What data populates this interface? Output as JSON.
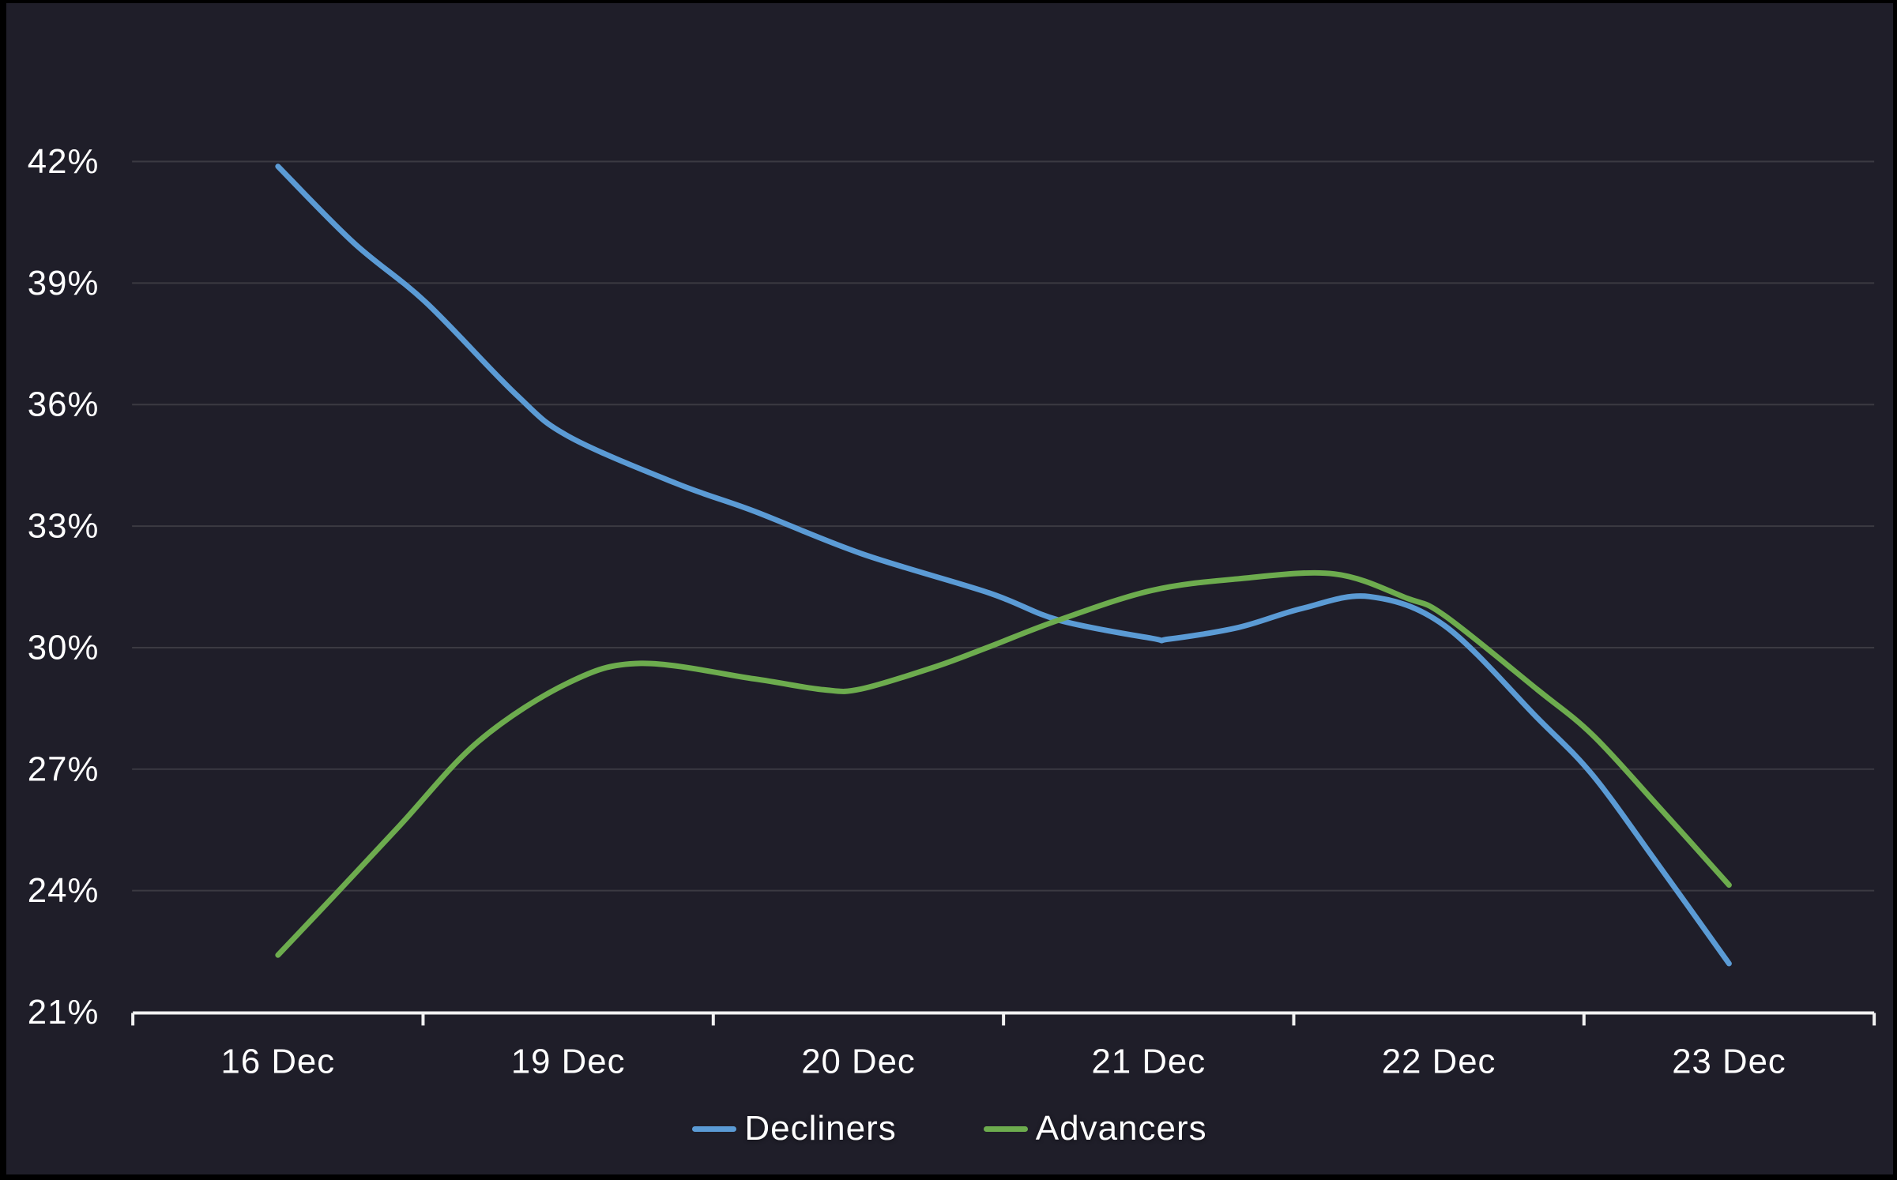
{
  "chart_data": {
    "type": "line",
    "title": "",
    "xlabel": "",
    "ylabel": "",
    "smooth": true,
    "grid": "horizontal",
    "legend_position": "bottom",
    "categories": [
      "16 Dec",
      "19 Dec",
      "20 Dec",
      "21 Dec",
      "22 Dec",
      "23 Dec"
    ],
    "y_axis": {
      "unit": "%",
      "min": 21,
      "max": 42,
      "step": 3,
      "tick_values": [
        42,
        39,
        36,
        33,
        30,
        27,
        24,
        21
      ],
      "tick_labels": [
        "42%",
        "39%",
        "36%",
        "33%",
        "30%",
        "27%",
        "24%",
        "21%"
      ]
    },
    "series": [
      {
        "name": "Decliners",
        "color": "#5B9BD5",
        "values": [
          41.9,
          35.2,
          32.3,
          30.2,
          30.5,
          22.2
        ],
        "curve_samples": [
          [
            0.0,
            41.88
          ],
          [
            0.26,
            40.0
          ],
          [
            0.51,
            38.52
          ],
          [
            0.82,
            36.25
          ],
          [
            1.0,
            35.22
          ],
          [
            1.37,
            34.06
          ],
          [
            1.64,
            33.37
          ],
          [
            2.01,
            32.32
          ],
          [
            2.45,
            31.35
          ],
          [
            2.69,
            30.68
          ],
          [
            3.01,
            30.23
          ],
          [
            3.07,
            30.21
          ],
          [
            3.31,
            30.5
          ],
          [
            3.53,
            30.97
          ],
          [
            3.76,
            31.26
          ],
          [
            4.02,
            30.54
          ],
          [
            4.34,
            28.26
          ],
          [
            4.53,
            26.85
          ],
          [
            4.75,
            24.7
          ],
          [
            5.0,
            22.2
          ]
        ]
      },
      {
        "name": "Advancers",
        "color": "#6DAC4E",
        "values": [
          22.4,
          29.1,
          29.0,
          31.4,
          30.8,
          24.1
        ],
        "curve_samples": [
          [
            0.0,
            22.41
          ],
          [
            0.21,
            24.0
          ],
          [
            0.42,
            25.61
          ],
          [
            0.69,
            27.68
          ],
          [
            1.0,
            29.13
          ],
          [
            1.25,
            29.61
          ],
          [
            1.64,
            29.23
          ],
          [
            1.88,
            28.96
          ],
          [
            2.01,
            28.98
          ],
          [
            2.27,
            29.54
          ],
          [
            2.45,
            30.02
          ],
          [
            2.69,
            30.68
          ],
          [
            3.01,
            31.41
          ],
          [
            3.31,
            31.7
          ],
          [
            3.64,
            31.82
          ],
          [
            3.89,
            31.22
          ],
          [
            4.02,
            30.79
          ],
          [
            4.34,
            28.96
          ],
          [
            4.53,
            27.84
          ],
          [
            4.75,
            26.13
          ],
          [
            5.0,
            24.14
          ]
        ]
      }
    ]
  },
  "colors": {
    "background": "#1F1E29",
    "frame": "#000000",
    "gridline": "#3B3A42",
    "axis_line": "#F2F2F2",
    "text": "#FFFFFF"
  }
}
